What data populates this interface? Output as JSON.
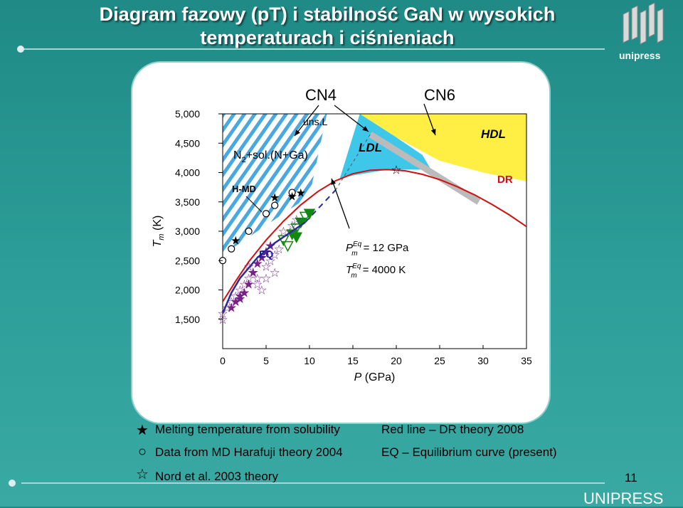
{
  "slide": {
    "title": "Diagram fazowy (pT) i stabilność GaN w wysokich temperaturach i ciśnieniach",
    "logo_text": "unipress",
    "page_number": "11",
    "footer_brand": "UNIPRESS"
  },
  "legend": {
    "items": [
      {
        "icon": "filled-star-icon",
        "glyph": "★",
        "text": "Melting temperature from solubility"
      },
      {
        "icon": "open-circle-icon",
        "glyph": "○",
        "text": "Data from MD Harafuji theory 2004"
      },
      {
        "icon": "open-star-icon",
        "glyph": "☆",
        "text": "Nord et al. 2003 theory"
      },
      {
        "text": "Red line – DR theory  2008"
      },
      {
        "text": "EQ – Equilibrium curve (present)"
      }
    ]
  },
  "chart_data": {
    "type": "scatter",
    "xlabel": "P (GPa)",
    "ylabel": "T m (K)",
    "xlim": [
      0,
      35
    ],
    "ylim": [
      1000,
      5000
    ],
    "xticks": [
      "0",
      "5",
      "10",
      "15",
      "20",
      "25",
      "30",
      "35"
    ],
    "yticks": [
      "5,000",
      "4,500",
      "4,000",
      "3,500",
      "3,000",
      "2,500",
      "2,000",
      "1,500"
    ],
    "ytick_values": [
      5000,
      4500,
      4000,
      3500,
      3000,
      2500,
      2000,
      1500
    ],
    "colors": {
      "red_line": "#d01010",
      "eq_line": "#2a2a9a",
      "hatch": "#4aa8e0",
      "ldl": "#3fc7ea",
      "hdl": "#ffee44",
      "green": "#118811",
      "purple": "#772288",
      "gray": "#bbbbbb"
    },
    "region_labels": {
      "cn4": "CN4",
      "cn6": "CN6",
      "uns": "uns.L",
      "n2": "N",
      "n2_sub": "2",
      "n2_rest": "+sol.(N+Ga)",
      "hmd": "H-MD",
      "eq": "EQ",
      "ldl": "LDL",
      "hdl": "HDL",
      "dr": "DR"
    },
    "annotation": {
      "p_sym": "P",
      "p_sup": "Eq",
      "p_sub": "m",
      "p_val": "= 12 GPa",
      "t_sym": "T",
      "t_sup": "Eq",
      "t_sub": "m",
      "t_val": "= 4000 K"
    },
    "series": [
      {
        "name": "Red line – DR theory  2008",
        "type": "line",
        "x": [
          0,
          1.5,
          3,
          5,
          7,
          9,
          11,
          13,
          15,
          17,
          19,
          21,
          23,
          25,
          27,
          29,
          31,
          33,
          35
        ],
        "y": [
          1800,
          2150,
          2480,
          2850,
          3170,
          3450,
          3680,
          3860,
          3980,
          4040,
          4050,
          4030,
          3970,
          3880,
          3760,
          3620,
          3460,
          3280,
          3080
        ]
      },
      {
        "name": "EQ – Equilibrium curve (present)",
        "type": "line",
        "x": [
          0,
          1,
          2,
          4,
          6,
          8,
          9.5
        ],
        "y": [
          1600,
          1950,
          2200,
          2550,
          2800,
          3000,
          3150
        ]
      },
      {
        "name": "Melting temperature from solubility",
        "type": "scatter",
        "x": [
          6,
          8,
          9,
          1.5
        ],
        "y": [
          3580,
          3600,
          3660,
          2850
        ]
      },
      {
        "name": "Data from MD Harafuji theory 2004",
        "type": "scatter",
        "x": [
          0,
          1,
          3,
          5,
          6,
          8
        ],
        "y": [
          2500,
          2700,
          3000,
          3300,
          3440,
          3660
        ]
      },
      {
        "name": "Nord et al. 2003 theory",
        "type": "scatter",
        "x": [
          0,
          0,
          0.5,
          1,
          1.5,
          2,
          2.5,
          3,
          3,
          3.5,
          4,
          4.5,
          5,
          5.5,
          6,
          6.5,
          4,
          5,
          6,
          7,
          8,
          8.5,
          20
        ],
        "y": [
          1500,
          1600,
          1700,
          1800,
          1900,
          2000,
          2100,
          2200,
          2400,
          2300,
          2200,
          2000,
          2400,
          2500,
          2600,
          2700,
          2100,
          2200,
          2300,
          3000,
          3100,
          3200,
          4050
        ]
      },
      {
        "name": "",
        "type": "scatter",
        "x": [
          7,
          8,
          8.5,
          9,
          9.5,
          10,
          7.5,
          8.5
        ],
        "y": [
          2850,
          2950,
          3050,
          3150,
          3250,
          3300,
          2750,
          2900
        ]
      },
      {
        "name": "",
        "type": "scatter",
        "x": [
          2,
          2.5,
          3,
          3.5,
          4,
          4.5,
          5,
          5.5,
          1,
          1.5,
          2
        ],
        "y": [
          1850,
          1950,
          2100,
          2300,
          2450,
          2550,
          2650,
          2750,
          1700,
          1800,
          1900
        ]
      }
    ]
  }
}
